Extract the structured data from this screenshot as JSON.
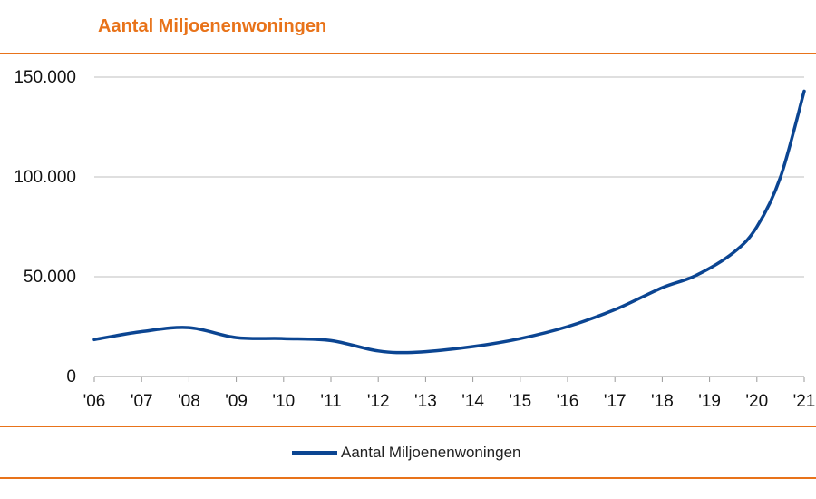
{
  "colors": {
    "accent": "#E8731A",
    "series": "#0B4592",
    "grid": "#BFBFBF",
    "axis": "#999999",
    "text": "#111111"
  },
  "chart_data": {
    "type": "line",
    "title": "Aantal Miljoenenwoningen",
    "xlabel": "",
    "ylabel": "",
    "x": [
      2006,
      2007,
      2008,
      2009,
      2010,
      2011,
      2012,
      2013,
      2014,
      2015,
      2016,
      2017,
      2018,
      2019,
      2020,
      2021
    ],
    "x_tick_labels": [
      "'06",
      "'07",
      "'08",
      "'09",
      "'10",
      "'11",
      "'12",
      "'13",
      "'14",
      "'15",
      "'16",
      "'17",
      "'18",
      "'19",
      "'20",
      "'21"
    ],
    "ylim": [
      0,
      150000
    ],
    "y_ticks": [
      0,
      50000,
      100000,
      150000
    ],
    "y_tick_labels": [
      "0",
      "50.000",
      "100.000",
      "150.000"
    ],
    "grid": true,
    "legend_position": "bottom-center",
    "series": [
      {
        "name": "Aantal Miljoenenwoningen",
        "color": "#0B4592",
        "points": [
          [
            2006.0,
            18500
          ],
          [
            2007.0,
            22500
          ],
          [
            2008.0,
            24500
          ],
          [
            2009.0,
            19500
          ],
          [
            2010.0,
            19000
          ],
          [
            2011.0,
            18000
          ],
          [
            2012.0,
            12800
          ],
          [
            2012.8,
            12200
          ],
          [
            2014.0,
            15000
          ],
          [
            2015.0,
            19000
          ],
          [
            2016.0,
            25000
          ],
          [
            2017.0,
            33500
          ],
          [
            2018.0,
            44500
          ],
          [
            2018.7,
            50500
          ],
          [
            2019.5,
            62000
          ],
          [
            2020.0,
            75000
          ],
          [
            2020.5,
            100000
          ],
          [
            2021.0,
            143000
          ]
        ]
      }
    ]
  }
}
